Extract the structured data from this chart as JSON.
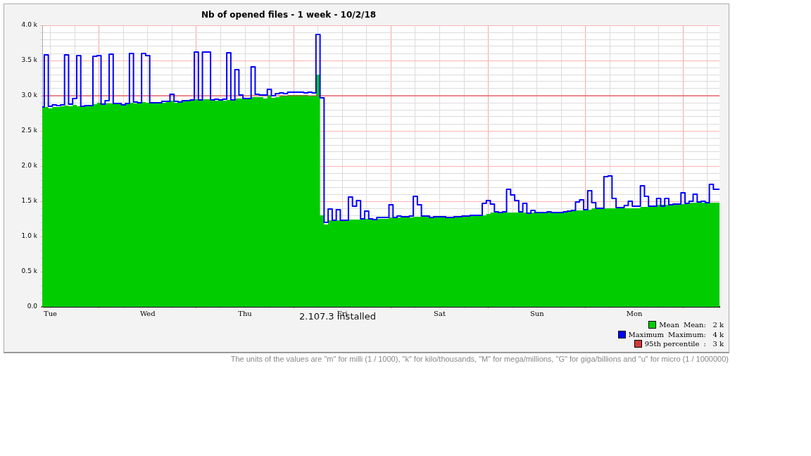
{
  "chart_data": {
    "type": "step",
    "title": "Nb of opened files - 1 week - 10/2/18",
    "categories": [
      null,
      null,
      "Tue",
      null,
      null,
      null,
      null,
      null,
      null,
      null,
      null,
      null,
      null,
      null,
      null,
      null,
      null,
      null,
      null,
      null,
      null,
      null,
      null,
      null,
      null,
      null,
      "Wed",
      null,
      null,
      null,
      null,
      null,
      null,
      null,
      null,
      null,
      null,
      null,
      null,
      null,
      null,
      null,
      null,
      null,
      null,
      null,
      null,
      null,
      null,
      null,
      "Thu",
      null,
      null,
      null,
      null,
      null,
      null,
      null,
      null,
      null,
      null,
      null,
      null,
      null,
      null,
      null,
      null,
      null,
      null,
      null,
      null,
      null,
      null,
      null,
      "Fri",
      null,
      null,
      null,
      null,
      null,
      null,
      null,
      null,
      null,
      null,
      null,
      null,
      null,
      null,
      null,
      null,
      null,
      null,
      null,
      null,
      null,
      null,
      null,
      "Sat",
      null,
      null,
      null,
      null,
      null,
      null,
      null,
      null,
      null,
      null,
      null,
      null,
      null,
      null,
      null,
      null,
      null,
      null,
      null,
      null,
      null,
      null,
      null,
      "Sun",
      null,
      null,
      null,
      null,
      null,
      null,
      null,
      null,
      null,
      null,
      null,
      null,
      null,
      null,
      null,
      null,
      null,
      null,
      null,
      null,
      null,
      null,
      null,
      "Mon",
      null,
      null,
      null,
      null,
      null,
      null,
      null,
      null,
      null,
      null,
      null,
      null,
      null,
      null,
      null,
      null,
      null,
      null,
      null,
      null,
      null
    ],
    "ylim": [
      0,
      4000
    ],
    "yticks": [
      {
        "value": 0,
        "label": "0.0"
      },
      {
        "value": 100,
        "label": null
      },
      {
        "value": 200,
        "label": null
      },
      {
        "value": 300,
        "label": null
      },
      {
        "value": 400,
        "label": null
      },
      {
        "value": 500,
        "label": "0.5 k"
      },
      {
        "value": 600,
        "label": null
      },
      {
        "value": 700,
        "label": null
      },
      {
        "value": 800,
        "label": null
      },
      {
        "value": 900,
        "label": null
      },
      {
        "value": 1000,
        "label": "1.0 k"
      },
      {
        "value": 1100,
        "label": null
      },
      {
        "value": 1200,
        "label": null
      },
      {
        "value": 1300,
        "label": null
      },
      {
        "value": 1400,
        "label": null
      },
      {
        "value": 1500,
        "label": "1.5 k"
      },
      {
        "value": 1600,
        "label": null
      },
      {
        "value": 1700,
        "label": null
      },
      {
        "value": 1800,
        "label": null
      },
      {
        "value": 1900,
        "label": null
      },
      {
        "value": 2000,
        "label": "2.0 k"
      },
      {
        "value": 2100,
        "label": null
      },
      {
        "value": 2200,
        "label": null
      },
      {
        "value": 2300,
        "label": null
      },
      {
        "value": 2400,
        "label": null
      },
      {
        "value": 2500,
        "label": "2.5 k"
      },
      {
        "value": 2600,
        "label": null
      },
      {
        "value": 2700,
        "label": null
      },
      {
        "value": 2800,
        "label": null
      },
      {
        "value": 2900,
        "label": null
      },
      {
        "value": 3000,
        "label": "3.0 k"
      },
      {
        "value": 3100,
        "label": null
      },
      {
        "value": 3200,
        "label": null
      },
      {
        "value": 3300,
        "label": null
      },
      {
        "value": 3400,
        "label": null
      },
      {
        "value": 3500,
        "label": "3.5 k"
      },
      {
        "value": 3600,
        "label": null
      },
      {
        "value": 3700,
        "label": null
      },
      {
        "value": 3800,
        "label": null
      },
      {
        "value": 3900,
        "label": null
      },
      {
        "value": 4000,
        "label": "4.0 k"
      }
    ],
    "grid": true,
    "legend": "bottom right",
    "series": [
      {
        "name": "Mean",
        "type": "area",
        "color": "#00cc00",
        "values": [
          2840,
          2840,
          2820,
          2840,
          2840,
          2850,
          2860,
          2850,
          2870,
          2850,
          2860,
          2860,
          2860,
          2880,
          2900,
          2880,
          2890,
          2890,
          2880,
          2880,
          2870,
          2880,
          2900,
          2890,
          2890,
          2910,
          2900,
          2900,
          2900,
          2900,
          2900,
          2920,
          2930,
          2900,
          2900,
          2920,
          2920,
          2930,
          2950,
          2950,
          2950,
          2950,
          2930,
          2930,
          2930,
          2930,
          2940,
          2940,
          2960,
          2960,
          2960,
          2970,
          2980,
          2980,
          2980,
          2960,
          3010,
          2970,
          2980,
          3000,
          3000,
          3010,
          3010,
          3010,
          3010,
          3010,
          3000,
          3000,
          3300,
          1300,
          1170,
          1230,
          1230,
          1230,
          1240,
          1240,
          1240,
          1240,
          1240,
          1250,
          1250,
          1250,
          1250,
          1250,
          1250,
          1250,
          1270,
          1270,
          1270,
          1270,
          1270,
          1270,
          1280,
          1280,
          1280,
          1280,
          1280,
          1280,
          1280,
          1280,
          1280,
          1280,
          1280,
          1280,
          1290,
          1290,
          1300,
          1300,
          1300,
          1300,
          1320,
          1340,
          1340,
          1340,
          1340,
          1340,
          1340,
          1340,
          1340,
          1340,
          1340,
          1340,
          1340,
          1340,
          1340,
          1340,
          1340,
          1340,
          1340,
          1360,
          1360,
          1370,
          1370,
          1370,
          1380,
          1380,
          1400,
          1400,
          1400,
          1400,
          1400,
          1400,
          1400,
          1400,
          1400,
          1400,
          1400,
          1400,
          1420,
          1420,
          1420,
          1420,
          1450,
          1450,
          1450,
          1450,
          1450,
          1450,
          1460,
          1460,
          1480,
          1480,
          1480,
          1480,
          1480,
          1480,
          1480,
          1480
        ]
      },
      {
        "name": "Maximum",
        "color": "#0000ff",
        "values": [
          2840,
          3580,
          2850,
          2870,
          2860,
          2870,
          3580,
          2880,
          2960,
          3570,
          2850,
          2860,
          2860,
          3560,
          3570,
          2880,
          2930,
          3590,
          2890,
          2890,
          2870,
          2890,
          3600,
          2910,
          2900,
          3600,
          3570,
          2900,
          2900,
          2900,
          2920,
          2920,
          3020,
          2920,
          2910,
          2930,
          2930,
          2940,
          3620,
          2940,
          3620,
          3620,
          2940,
          2950,
          2940,
          2950,
          3610,
          2940,
          3370,
          3010,
          2960,
          2960,
          3410,
          3020,
          3010,
          3010,
          3090,
          3000,
          3030,
          3040,
          3030,
          3050,
          3050,
          3050,
          3050,
          3040,
          3050,
          3040,
          3870,
          2970,
          1200,
          1390,
          1230,
          1380,
          1230,
          1230,
          1560,
          1430,
          1510,
          1250,
          1360,
          1250,
          1240,
          1270,
          1270,
          1270,
          1450,
          1270,
          1290,
          1280,
          1280,
          1290,
          1570,
          1450,
          1290,
          1290,
          1270,
          1280,
          1280,
          1280,
          1270,
          1270,
          1280,
          1280,
          1290,
          1290,
          1300,
          1300,
          1300,
          1470,
          1510,
          1460,
          1350,
          1340,
          1350,
          1670,
          1590,
          1510,
          1350,
          1470,
          1330,
          1370,
          1340,
          1340,
          1340,
          1350,
          1340,
          1340,
          1340,
          1350,
          1360,
          1370,
          1490,
          1520,
          1380,
          1650,
          1480,
          1400,
          1400,
          1850,
          1860,
          1540,
          1410,
          1410,
          1440,
          1500,
          1430,
          1430,
          1720,
          1570,
          1430,
          1430,
          1540,
          1430,
          1540,
          1450,
          1460,
          1460,
          1620,
          1470,
          1500,
          1600,
          1490,
          1500,
          1480,
          1740,
          1670,
          1670
        ]
      }
    ],
    "ref_lines": [
      {
        "axis": "y",
        "value": 3000,
        "label": "95th percentile",
        "color": "#d43a3a"
      }
    ],
    "annotations": [
      "2.107.3 installed",
      "Mean:   2 k",
      "Maximum:   4 k",
      ":   3 k",
      "The units of the values are \"m\" for milli (1 / 1000), \"k\" for kilo/thousands, \"M\" for mega/millions, \"G\" for giga/billions and \"u\" for micro (1 / 1000000)"
    ]
  }
}
